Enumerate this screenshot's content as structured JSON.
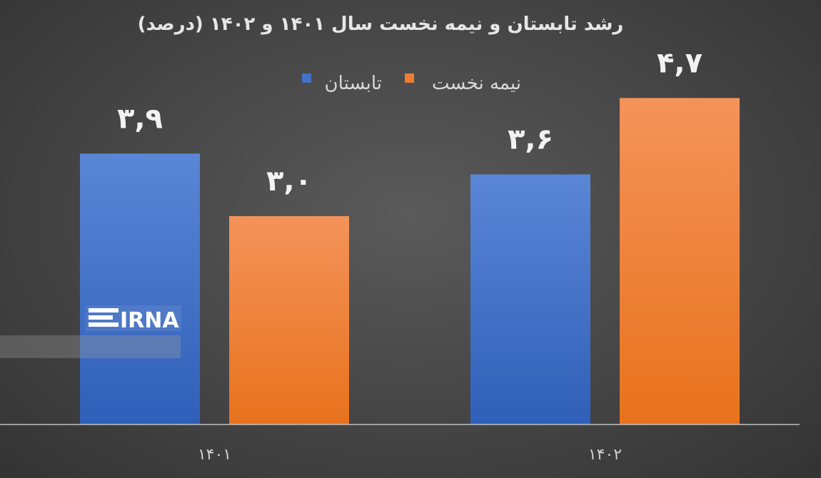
{
  "chart_data": {
    "type": "bar",
    "title": "رشد تابستان و نیمه نخست سال ۱۴۰۱ و ۱۴۰۲ (درصد)",
    "categories": [
      "۱۴۰۱",
      "۱۴۰۲"
    ],
    "series": [
      {
        "name": "تابستان",
        "color": "#4472c4",
        "values": [
          3.9,
          3.6
        ],
        "labels": [
          "۳,۹",
          "۳,۶"
        ]
      },
      {
        "name": "نیمه نخست",
        "color": "#ed7d31",
        "values": [
          3.0,
          4.7
        ],
        "labels": [
          "۳,۰",
          "۴,۷"
        ]
      }
    ],
    "ylim": [
      0,
      5.7
    ],
    "grid": false,
    "legend_position": "top-center"
  },
  "watermark": {
    "text": "IRNA"
  }
}
